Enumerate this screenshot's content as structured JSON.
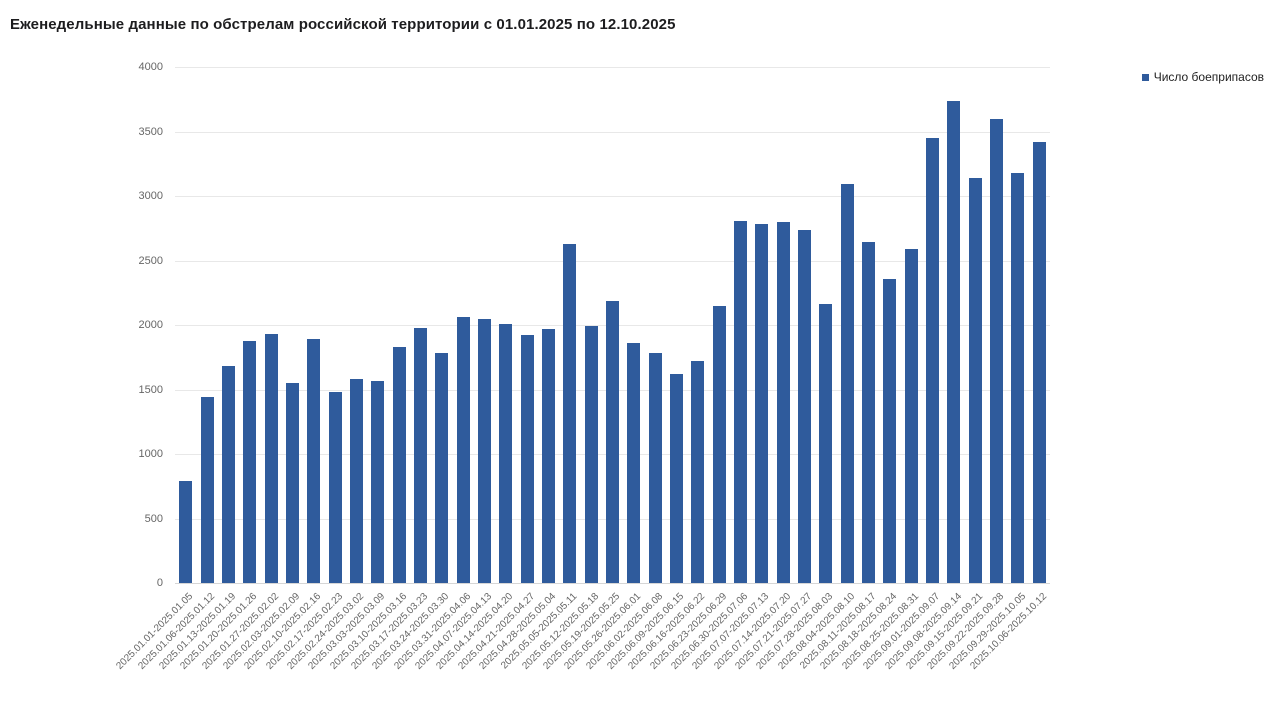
{
  "page": {
    "background": "#ffffff"
  },
  "chart_data": {
    "type": "bar",
    "title": "Еженедельные данные по обстрелам российской территории с 01.01.2025 по 12.10.2025",
    "legend": [
      "Число боеприпасов"
    ],
    "xlabel": "",
    "ylabel": "",
    "ylim": [
      0,
      4000
    ],
    "ytick_step": 500,
    "yticks": [
      0,
      500,
      1000,
      1500,
      2000,
      2500,
      3000,
      3500,
      4000
    ],
    "grid": true,
    "legend_position": "top-right",
    "bar_color": "#2f5b9c",
    "grid_color": "#e8e8e8",
    "axis_label_color": "#666666",
    "title_color": "#1d1d1f",
    "categories": [
      "2025.01.01-2025.01.05",
      "2025.01.06-2025.01.12",
      "2025.01.13-2025.01.19",
      "2025.01.20-2025.01.26",
      "2025.01.27-2025.02.02",
      "2025.02.03-2025.02.09",
      "2025.02.10-2025.02.16",
      "2025.02.17-2025.02.23",
      "2025.02.24-2025.03.02",
      "2025.03.03-2025.03.09",
      "2025.03.10-2025.03.16",
      "2025.03.17-2025.03.23",
      "2025.03.24-2025.03.30",
      "2025.03.31-2025.04.06",
      "2025.04.07-2025.04.13",
      "2025.04.14-2025.04.20",
      "2025.04.21-2025.04.27",
      "2025.04.28-2025.05.04",
      "2025.05.05-2025.05.11",
      "2025.05.12-2025.05.18",
      "2025.05.19-2025.05.25",
      "2025.05.26-2025.06.01",
      "2025.06.02-2025.06.08",
      "2025.06.09-2025.06.15",
      "2025.06.16-2025.06.22",
      "2025.06.23-2025.06.29",
      "2025.06.30-2025.07.06",
      "2025.07.07-2025.07.13",
      "2025.07.14-2025.07.20",
      "2025.07.21-2025.07.27",
      "2025.07.28-2025.08.03",
      "2025.08.04-2025.08.10",
      "2025.08.11-2025.08.17",
      "2025.08.18-2025.08.24",
      "2025.08.25-2025.08.31",
      "2025.09.01-2025.09.07",
      "2025.09.08-2025.09.14",
      "2025.09.15-2025.09.21",
      "2025.09.22-2025.09.28",
      "2025.09.29-2025.10.05",
      "2025.10.06-2025.10.12"
    ],
    "series": [
      {
        "name": "Число боеприпасов",
        "values": [
          790,
          1440,
          1680,
          1880,
          1930,
          1550,
          1890,
          1480,
          1580,
          1570,
          1830,
          1980,
          1780,
          2060,
          2050,
          2010,
          1920,
          1970,
          2630,
          1990,
          2190,
          1860,
          1780,
          1620,
          1720,
          2150,
          2810,
          2780,
          2800,
          2740,
          2160,
          3090,
          2640,
          2360,
          2590,
          3450,
          3740,
          3140,
          3600,
          3180,
          3420
        ]
      }
    ]
  }
}
